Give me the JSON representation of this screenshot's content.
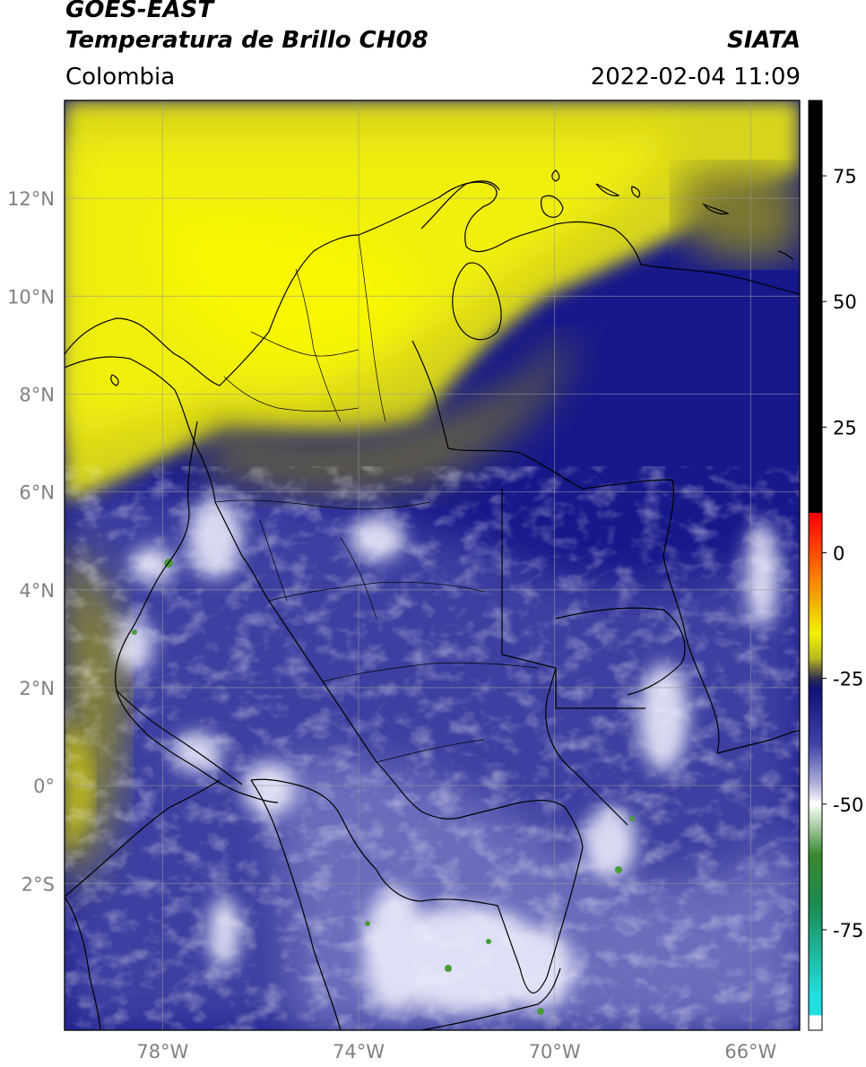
{
  "header": {
    "satellite": "GOES-EAST",
    "product": "Temperatura de Brillo CH08",
    "brand": "SIATA",
    "region": "Colombia",
    "timestamp": "2022-02-04 11:09"
  },
  "map": {
    "lon_range": [
      -80.0,
      -65.0
    ],
    "lat_range": [
      -5.0,
      14.0
    ],
    "lon_ticks": [
      {
        "value": -78,
        "label": "78°W"
      },
      {
        "value": -74,
        "label": "74°W"
      },
      {
        "value": -70,
        "label": "70°W"
      },
      {
        "value": -66,
        "label": "66°W"
      }
    ],
    "lat_ticks": [
      {
        "value": 12,
        "label": "12°N"
      },
      {
        "value": 10,
        "label": "10°N"
      },
      {
        "value": 8,
        "label": "8°N"
      },
      {
        "value": 6,
        "label": "6°N"
      },
      {
        "value": 4,
        "label": "4°N"
      },
      {
        "value": 2,
        "label": "2°N"
      },
      {
        "value": 0,
        "label": "0°"
      },
      {
        "value": -2,
        "label": "2°S"
      }
    ],
    "gridlines": true
  },
  "colorbar": {
    "range": [
      -95,
      90
    ],
    "ticks": [
      {
        "value": 75,
        "label": "75"
      },
      {
        "value": 50,
        "label": "50"
      },
      {
        "value": 25,
        "label": "25"
      },
      {
        "value": 0,
        "label": "0"
      },
      {
        "value": -25,
        "label": "-25"
      },
      {
        "value": -50,
        "label": "-50"
      },
      {
        "value": -75,
        "label": "-75"
      }
    ],
    "stops": [
      {
        "value": 90,
        "color": "#000000"
      },
      {
        "value": 8,
        "color": "#000000"
      },
      {
        "value": 7.9,
        "color": "#ff0000"
      },
      {
        "value": -3,
        "color": "#ff6a00"
      },
      {
        "value": -10,
        "color": "#f2b200"
      },
      {
        "value": -16,
        "color": "#f4f200"
      },
      {
        "value": -21,
        "color": "#b8b820"
      },
      {
        "value": -25,
        "color": "#2e2e50"
      },
      {
        "value": -27,
        "color": "#10107a"
      },
      {
        "value": -38,
        "color": "#4040a8"
      },
      {
        "value": -46,
        "color": "#b0b0dc"
      },
      {
        "value": -50,
        "color": "#ffffff"
      },
      {
        "value": -60,
        "color": "#3a8a30"
      },
      {
        "value": -70,
        "color": "#1a8a50"
      },
      {
        "value": -88,
        "color": "#20e0e0"
      },
      {
        "value": -92,
        "color": "#20e0e0"
      },
      {
        "value": -92.1,
        "color": "#ffffff"
      },
      {
        "value": -95,
        "color": "#ffffff"
      }
    ]
  }
}
